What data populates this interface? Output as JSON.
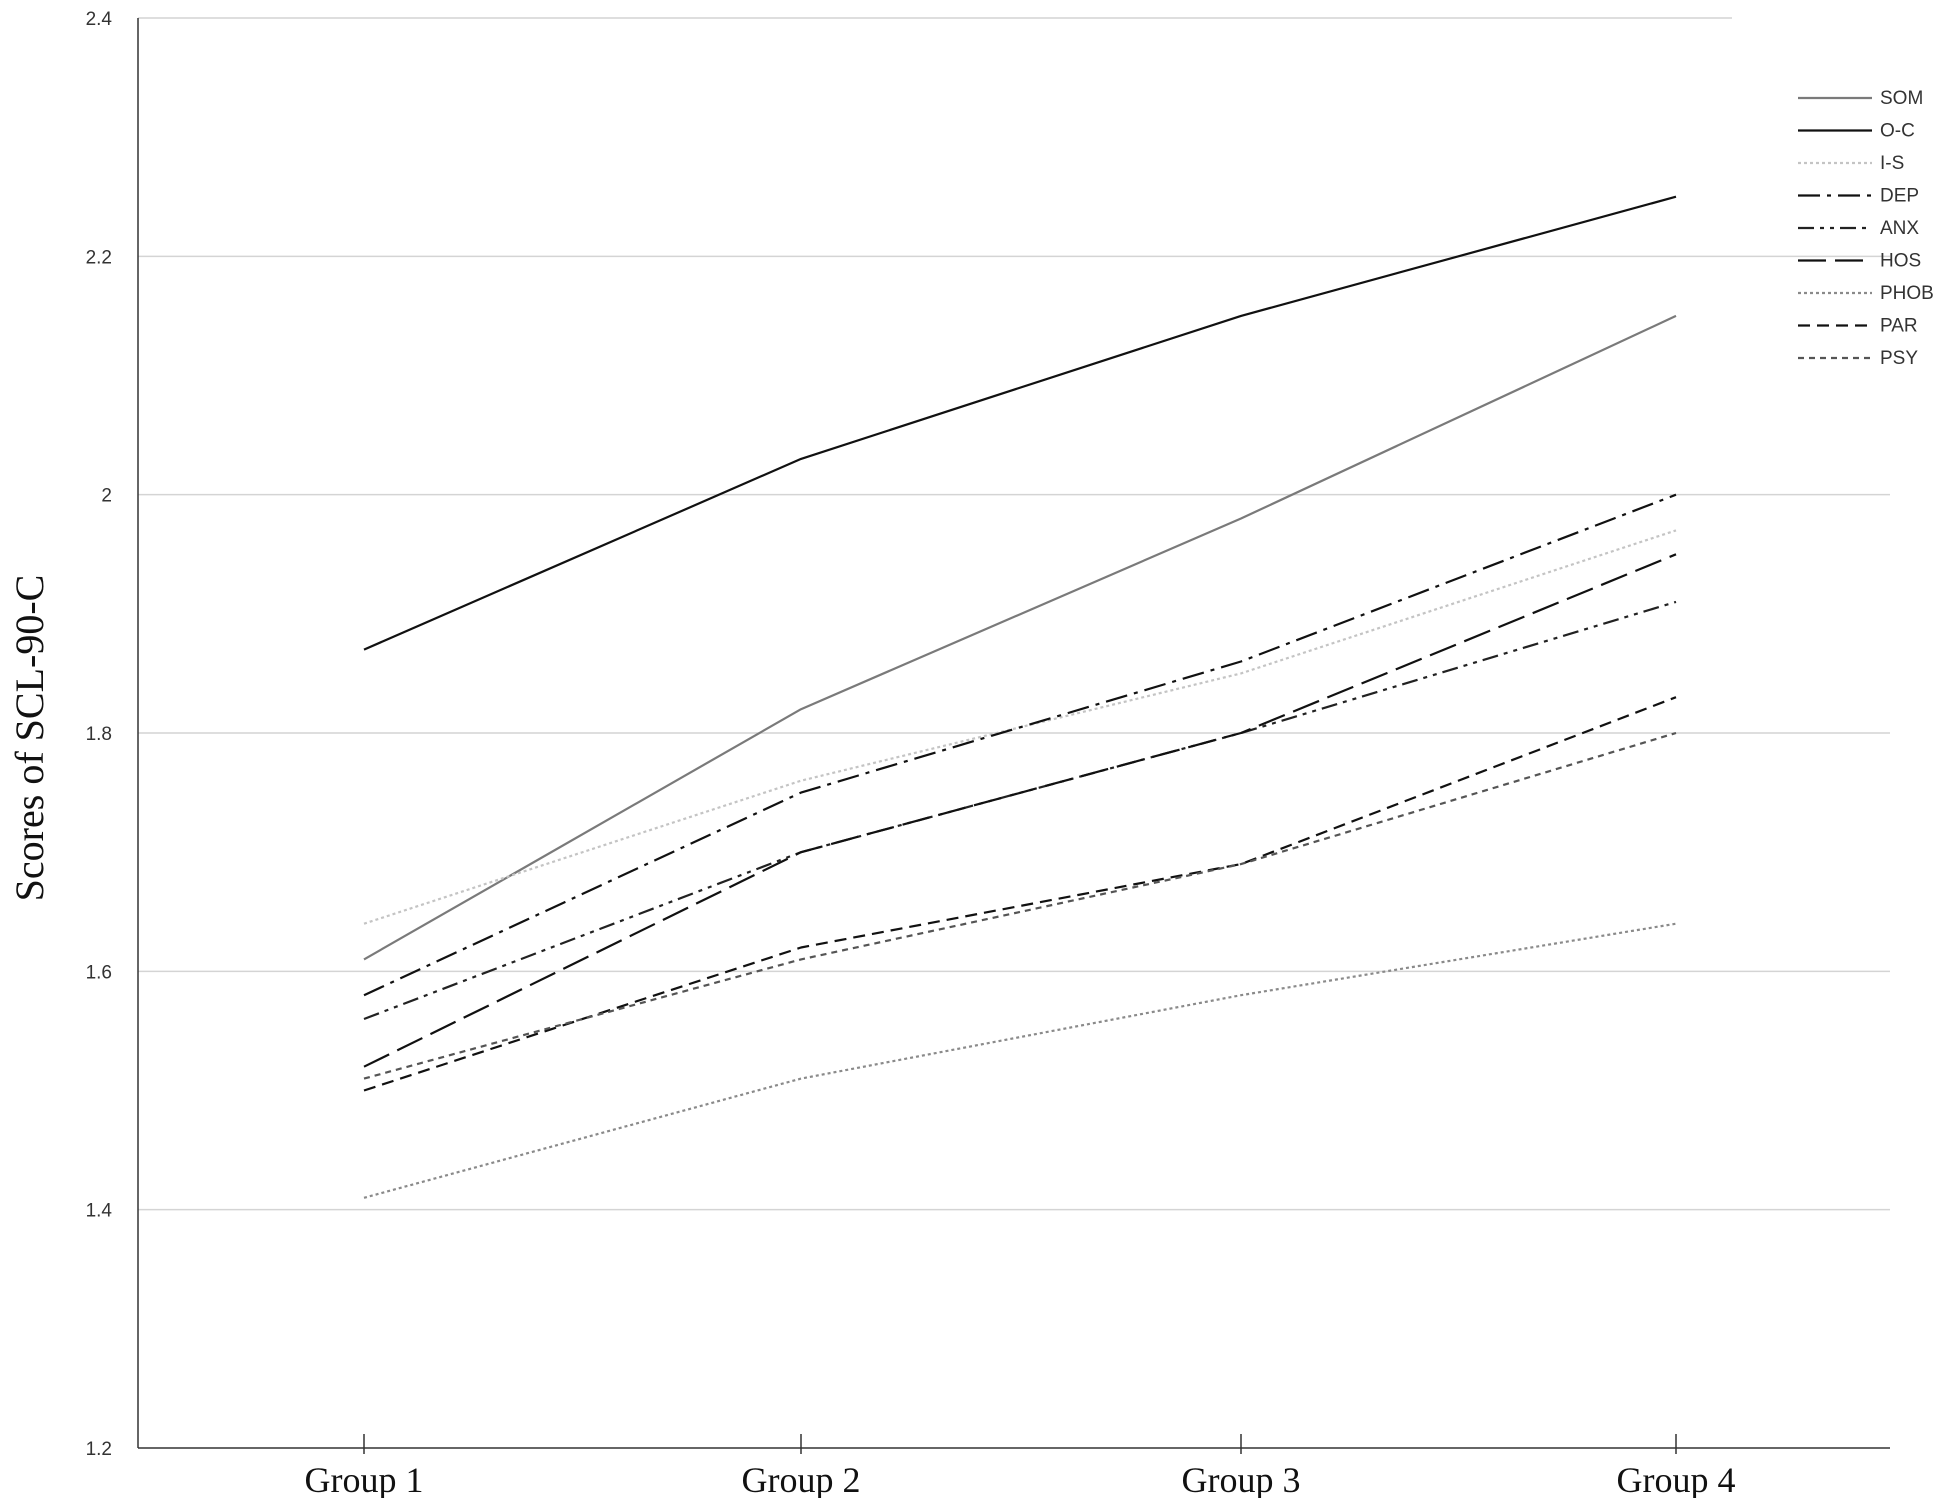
{
  "chart_data": {
    "type": "line",
    "title": "",
    "xlabel": "",
    "ylabel": "Scores of SCL-90-C",
    "ylim": [
      1.2,
      2.4
    ],
    "yticks": [
      1.2,
      1.4,
      1.6,
      1.8,
      2,
      2.2,
      2.4
    ],
    "ytick_labels": [
      "1.2",
      "1.4",
      "1.6",
      "1.8",
      "2",
      "2.2",
      "2.4"
    ],
    "grid": "horizontal",
    "legend_position": "top-right",
    "categories": [
      "Group 1",
      "Group 2",
      "Group 3",
      "Group 4"
    ],
    "series": [
      {
        "name": "SOM",
        "values": [
          1.61,
          1.82,
          1.98,
          2.15
        ],
        "color": "#7a7a7a",
        "style": "solid"
      },
      {
        "name": "O-C",
        "values": [
          1.87,
          2.03,
          2.15,
          2.25
        ],
        "color": "#111111",
        "style": "solid"
      },
      {
        "name": "I-S",
        "values": [
          1.64,
          1.76,
          1.85,
          1.97
        ],
        "color": "#c4c4c4",
        "style": "dotted"
      },
      {
        "name": "DEP",
        "values": [
          1.58,
          1.75,
          1.86,
          2.0
        ],
        "color": "#111111",
        "style": "dash-dot"
      },
      {
        "name": "ANX",
        "values": [
          1.56,
          1.7,
          1.8,
          1.91
        ],
        "color": "#222222",
        "style": "dash-dot-dot"
      },
      {
        "name": "HOS",
        "values": [
          1.52,
          1.7,
          1.8,
          1.95
        ],
        "color": "#111111",
        "style": "long-dash"
      },
      {
        "name": "PHOB",
        "values": [
          1.41,
          1.51,
          1.58,
          1.64
        ],
        "color": "#8a8a8a",
        "style": "dotted"
      },
      {
        "name": "PAR",
        "values": [
          1.5,
          1.62,
          1.69,
          1.83
        ],
        "color": "#111111",
        "style": "dash"
      },
      {
        "name": "PSY",
        "values": [
          1.51,
          1.61,
          1.69,
          1.8
        ],
        "color": "#555555",
        "style": "short-dash"
      }
    ]
  }
}
